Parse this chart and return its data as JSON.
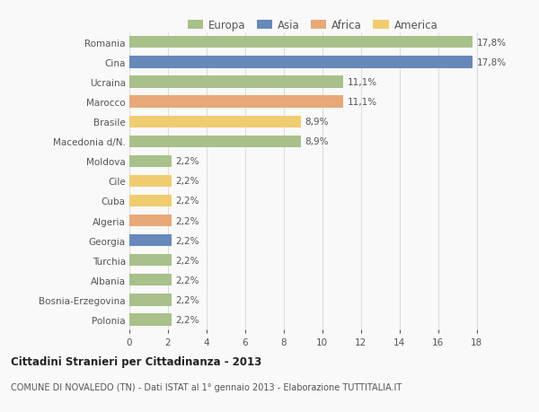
{
  "countries": [
    "Polonia",
    "Bosnia-Erzegovina",
    "Albania",
    "Turchia",
    "Georgia",
    "Algeria",
    "Cuba",
    "Cile",
    "Moldova",
    "Macedonia d/N.",
    "Brasile",
    "Marocco",
    "Ucraina",
    "Cina",
    "Romania"
  ],
  "values": [
    2.2,
    2.2,
    2.2,
    2.2,
    2.2,
    2.2,
    2.2,
    2.2,
    2.2,
    8.9,
    8.9,
    11.1,
    11.1,
    17.8,
    17.8
  ],
  "labels": [
    "2,2%",
    "2,2%",
    "2,2%",
    "2,2%",
    "2,2%",
    "2,2%",
    "2,2%",
    "2,2%",
    "2,2%",
    "8,9%",
    "8,9%",
    "11,1%",
    "11,1%",
    "17,8%",
    "17,8%"
  ],
  "colors": [
    "#a8c08a",
    "#a8c08a",
    "#a8c08a",
    "#a8c08a",
    "#6688bb",
    "#e8a878",
    "#f0cc70",
    "#f0cc70",
    "#a8c08a",
    "#a8c08a",
    "#f0cc70",
    "#e8a878",
    "#a8c08a",
    "#6688bb",
    "#a8c08a"
  ],
  "legend": [
    {
      "label": "Europa",
      "color": "#a8c08a"
    },
    {
      "label": "Asia",
      "color": "#6688bb"
    },
    {
      "label": "Africa",
      "color": "#e8a878"
    },
    {
      "label": "America",
      "color": "#f0cc70"
    }
  ],
  "title_bold": "Cittadini Stranieri per Cittadinanza - 2013",
  "title_sub": "COMUNE DI NOVALEDO (TN) - Dati ISTAT al 1° gennaio 2013 - Elaborazione TUTTITALIA.IT",
  "xlim": [
    0,
    19
  ],
  "xticks": [
    0,
    2,
    4,
    6,
    8,
    10,
    12,
    14,
    16,
    18
  ],
  "background_color": "#f9f9f9",
  "grid_color": "#dddddd",
  "bar_height": 0.6
}
